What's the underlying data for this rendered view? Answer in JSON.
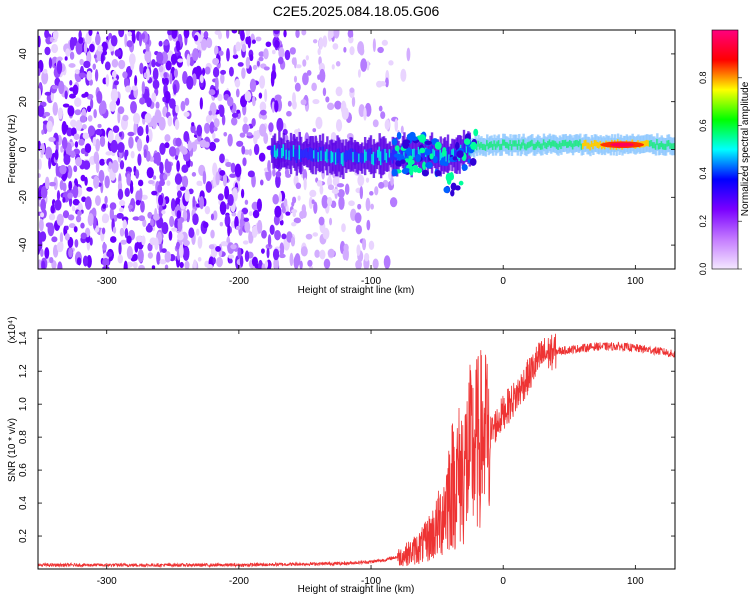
{
  "title": "C2E5.2025.084.18.05.G06",
  "chart_data": [
    {
      "type": "heatmap",
      "xlabel": "Height of straight line (km)",
      "ylabel": "Frequency (Hz)",
      "xlim": [
        -352,
        130
      ],
      "ylim": [
        -50,
        50
      ],
      "x_ticks": [
        -300,
        -200,
        -100,
        0,
        100
      ],
      "x_tick_labels": [
        "-300",
        "-200",
        "-100",
        "0",
        "100"
      ],
      "y_ticks": [
        -40,
        -20,
        0,
        20,
        40
      ],
      "y_tick_labels": [
        "-40",
        "-20",
        "0",
        "20",
        "40"
      ],
      "colorbar": {
        "label": "Normalized spectral amplitude",
        "range": [
          0,
          1
        ],
        "ticks": [
          0.0,
          0.2,
          0.4,
          0.6,
          0.8
        ],
        "tick_labels": [
          "0.0",
          "0.2",
          "0.4",
          "0.6",
          "0.8"
        ],
        "colors": [
          "#f4e8ff",
          "#c47bff",
          "#7a00ff",
          "#0000ff",
          "#00ffff",
          "#00ff00",
          "#ffff00",
          "#ff0000",
          "#ff007f"
        ]
      },
      "ridge": {
        "x": [
          -175,
          -150,
          -125,
          -100,
          -80,
          -60,
          -40,
          -25,
          -10,
          0,
          20,
          50,
          80,
          100,
          130
        ],
        "y": [
          -1,
          -2,
          -3,
          -3,
          -2,
          -2,
          -3,
          1,
          2,
          2,
          2,
          2,
          2,
          2,
          2
        ],
        "peak_amplitude": 0.95
      },
      "noise_region_x": [
        -352,
        -80
      ],
      "grid": false
    },
    {
      "type": "line",
      "xlabel": "Height of straight line (km)",
      "ylabel": "SNR (10 * v/v)",
      "y_multiplier": "(x10⁴)",
      "xlim": [
        -352,
        130
      ],
      "ylim": [
        0,
        1.45
      ],
      "x_ticks": [
        -300,
        -200,
        -100,
        0,
        100
      ],
      "x_tick_labels": [
        "-300",
        "-200",
        "-100",
        "0",
        "100"
      ],
      "y_ticks": [
        0.2,
        0.4,
        0.6,
        0.8,
        1.0,
        1.2,
        1.4
      ],
      "y_tick_labels": [
        "0.2",
        "0.4",
        "0.6",
        "0.8",
        "1.0",
        "1.2",
        "1.4"
      ],
      "series": [
        {
          "color": "#ee3333",
          "x": [
            -352,
            -300,
            -250,
            -200,
            -160,
            -120,
            -100,
            -90,
            -80,
            -70,
            -60,
            -50,
            -45,
            -40,
            -35,
            -30,
            -25,
            -20,
            -15,
            -12,
            -10,
            -5,
            0,
            5,
            10,
            15,
            20,
            25,
            30,
            40,
            50,
            60,
            70,
            80,
            90,
            100,
            110,
            120,
            130
          ],
          "y": [
            0.02,
            0.02,
            0.02,
            0.02,
            0.025,
            0.03,
            0.04,
            0.05,
            0.07,
            0.1,
            0.15,
            0.25,
            0.35,
            0.5,
            0.55,
            0.6,
            0.7,
            0.75,
            0.82,
            0.86,
            0.82,
            0.88,
            0.95,
            1.0,
            1.05,
            1.12,
            1.18,
            1.25,
            1.3,
            1.32,
            1.33,
            1.34,
            1.35,
            1.35,
            1.35,
            1.34,
            1.33,
            1.32,
            1.3
          ]
        }
      ],
      "grid": false
    }
  ]
}
